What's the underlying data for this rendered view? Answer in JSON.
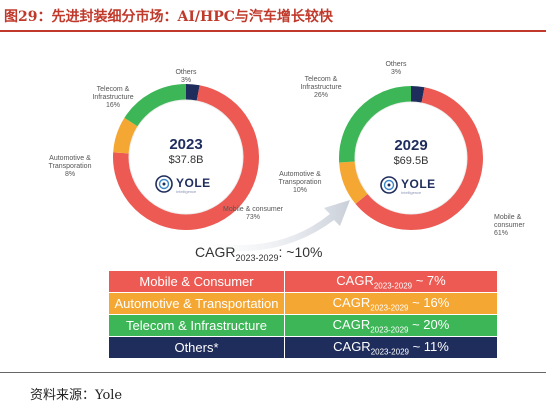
{
  "figure_title": "图29：先进封装细分市场：AI/HPC与汽车增长较快",
  "source": "资料来源：Yole",
  "colors": {
    "mobile": "#ec5a53",
    "automotive": "#f5a733",
    "telecom": "#3db657",
    "others": "#1f2d5c",
    "title_red": "#c0392b"
  },
  "logo": {
    "name": "YOLE",
    "sub": "Intelligence",
    "icon": "yole-logo-icon"
  },
  "chart_data": [
    {
      "type": "pie",
      "donut": true,
      "center_year": "2023",
      "center_total": "$37.8B",
      "slices": [
        {
          "label_lines": [
            "Mobile & consumer",
            "73%"
          ],
          "value": 73,
          "color": "#ec5a53"
        },
        {
          "label_lines": [
            "Automotive &",
            "Transporation",
            "8%"
          ],
          "value": 8,
          "color": "#f5a733"
        },
        {
          "label_lines": [
            "Telecom &",
            "Infrastructure",
            "16%"
          ],
          "value": 16,
          "color": "#3db657"
        },
        {
          "label_lines": [
            "Others",
            "3%"
          ],
          "value": 3,
          "color": "#1f2d5c"
        }
      ]
    },
    {
      "type": "pie",
      "donut": true,
      "center_year": "2029",
      "center_total": "$69.5B",
      "slices": [
        {
          "label_lines": [
            "Mobile &",
            "consumer",
            "61%"
          ],
          "value": 61,
          "color": "#ec5a53"
        },
        {
          "label_lines": [
            "Automotive &",
            "Transporation",
            "10%"
          ],
          "value": 10,
          "color": "#f5a733"
        },
        {
          "label_lines": [
            "Telecom &",
            "Infrastructure",
            "26%"
          ],
          "value": 26,
          "color": "#3db657"
        },
        {
          "label_lines": [
            "Others",
            "3%"
          ],
          "value": 3,
          "color": "#1f2d5c"
        }
      ]
    },
    {
      "type": "table",
      "overall": {
        "prefix": "CAGR",
        "period": "2023-2029",
        "value": ": ~10%"
      },
      "rows": [
        {
          "segment": "Mobile & Consumer",
          "prefix": "CAGR",
          "period": "2023-2029",
          "value": " ~ 7%",
          "color": "#ec5a53"
        },
        {
          "segment": "Automotive & Transportation",
          "prefix": "CAGR",
          "period": "2023-2029",
          "value": " ~ 16%",
          "color": "#f5a733"
        },
        {
          "segment": "Telecom & Infrastructure",
          "prefix": "CAGR",
          "period": "2023-2029",
          "value": " ~ 20%",
          "color": "#3db657"
        },
        {
          "segment": "Others*",
          "prefix": "CAGR",
          "period": "2023-2029",
          "value": " ~ 11%",
          "color": "#1f2d5c"
        }
      ]
    }
  ]
}
